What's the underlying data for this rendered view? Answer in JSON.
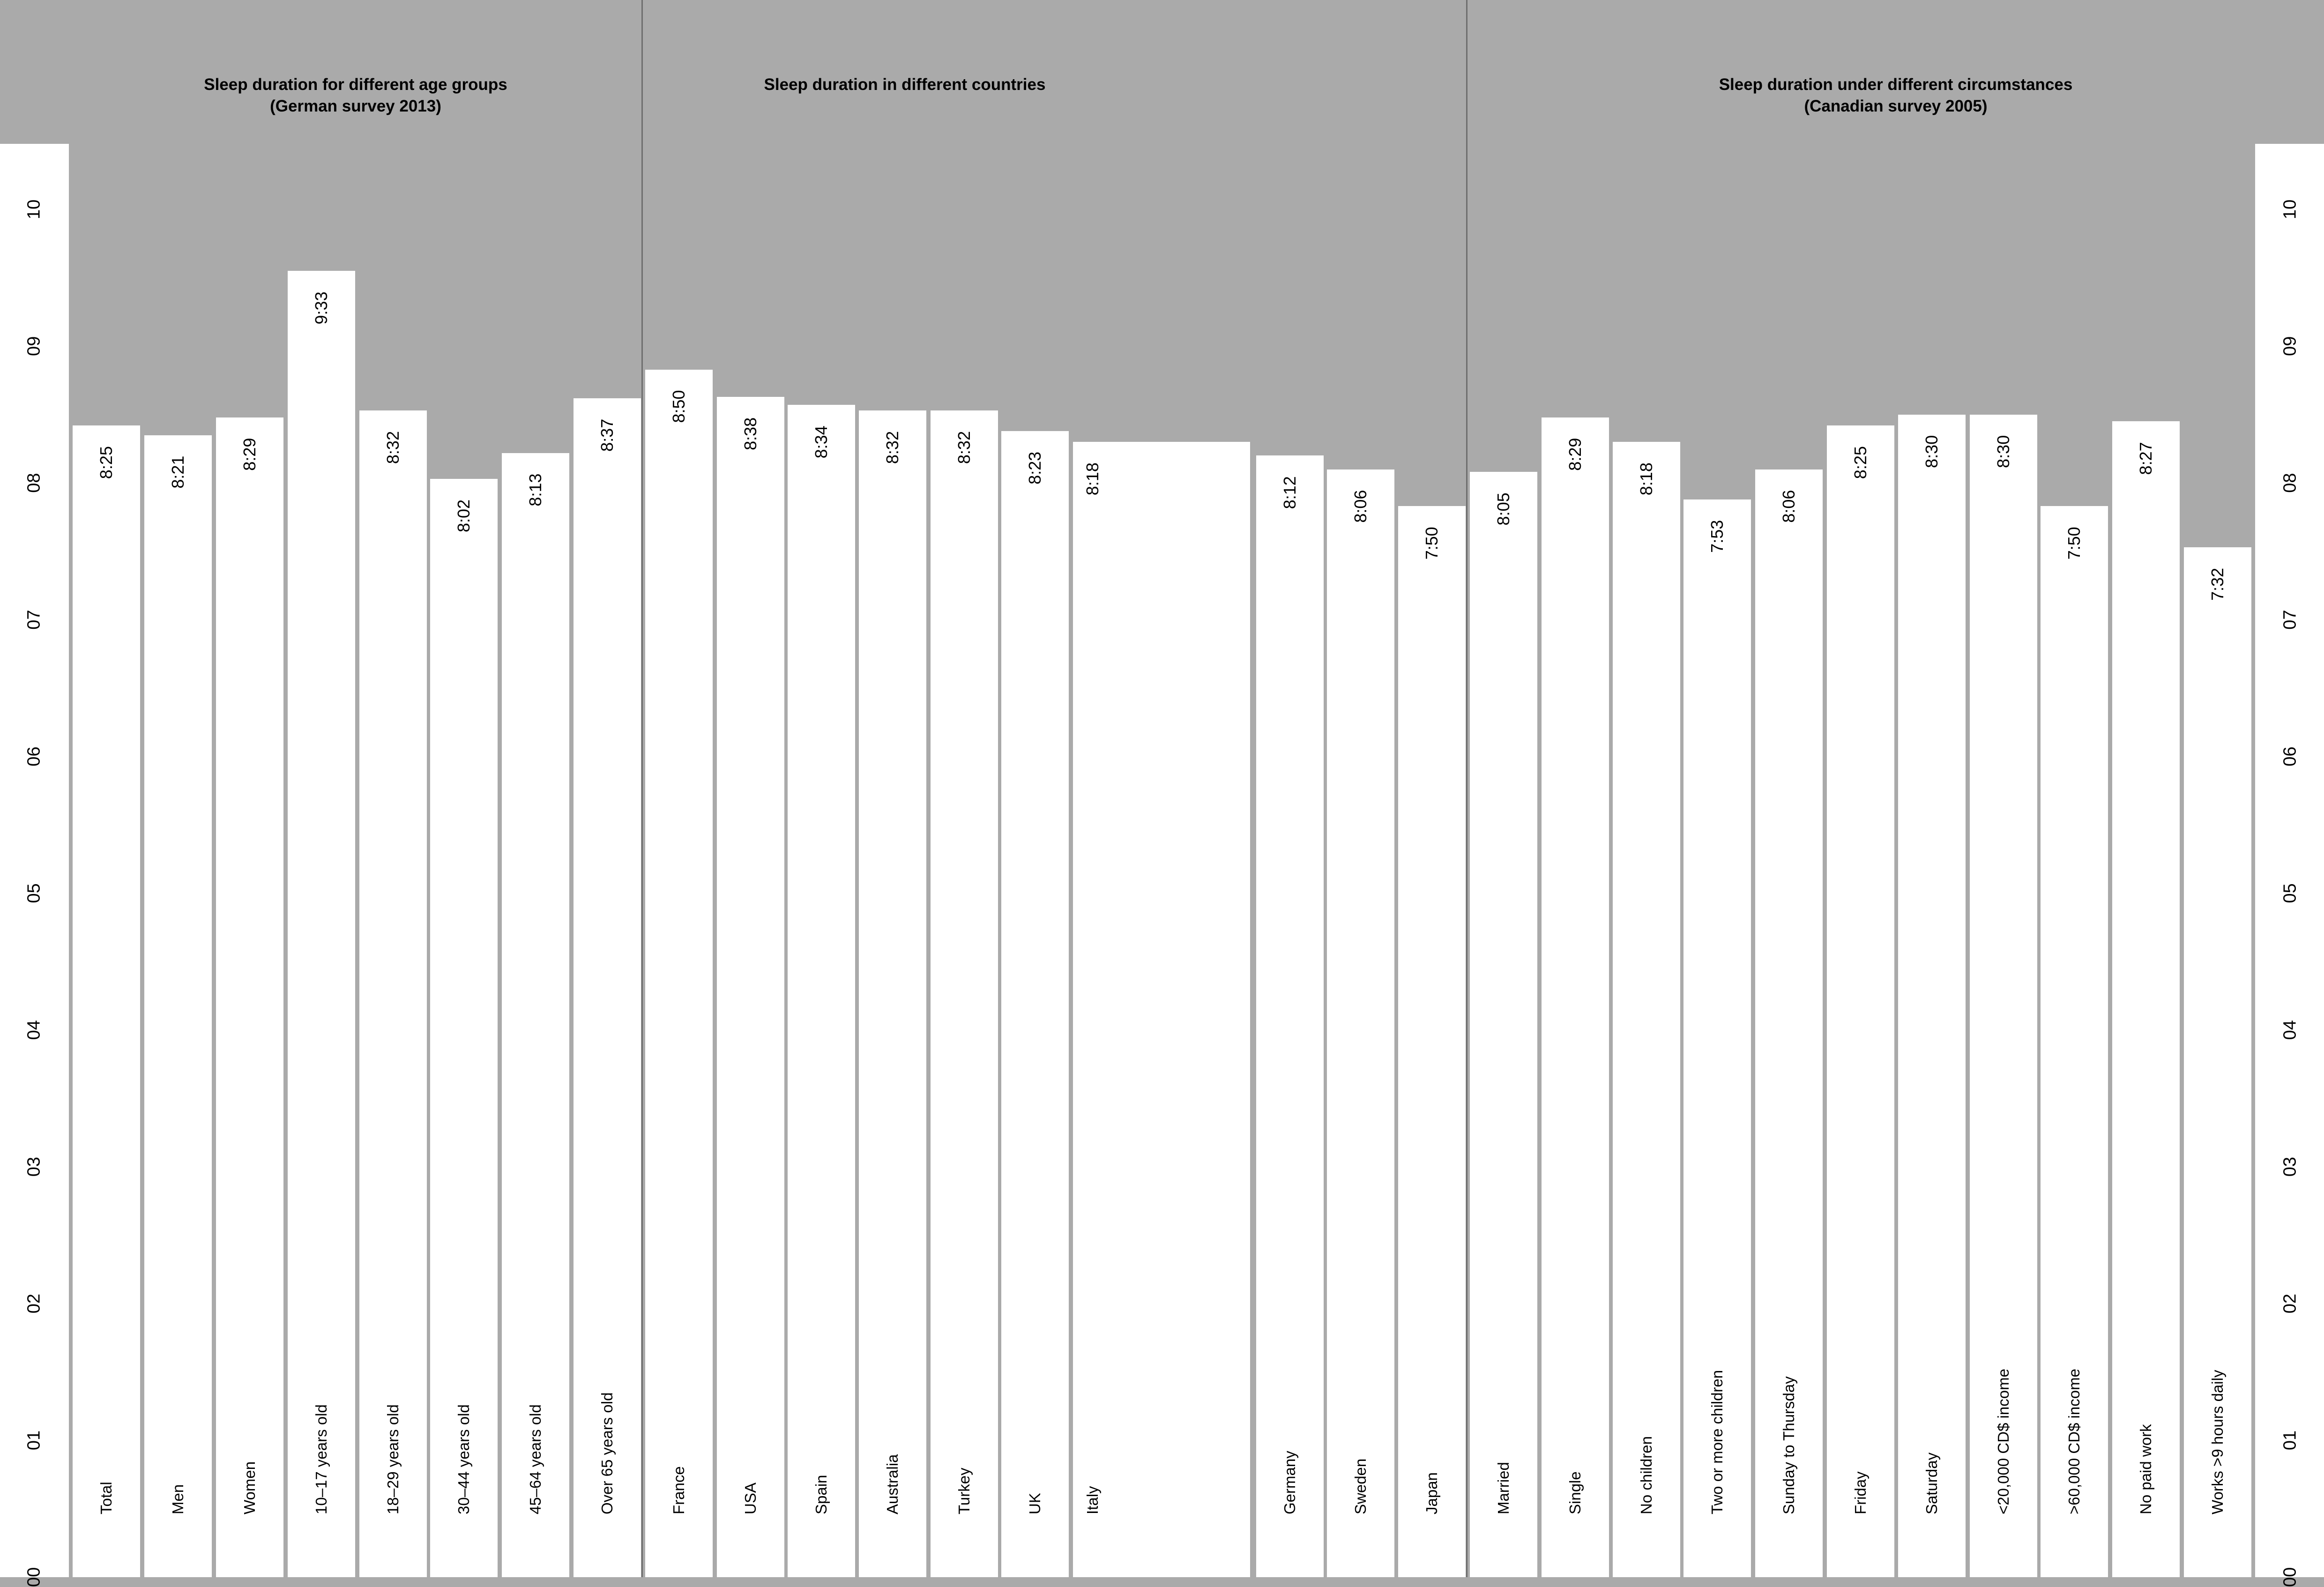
{
  "chart_data": {
    "type": "bar",
    "ylim": [
      0,
      10
    ],
    "yticks": [
      "00",
      "01",
      "02",
      "03",
      "04",
      "05",
      "06",
      "07",
      "08",
      "09",
      "10"
    ],
    "colors": {
      "background": "#aaaaaa",
      "bar": "#ffffff",
      "text": "#000000",
      "divider": "#6e6e6e"
    },
    "panels": [
      {
        "title": "Sleep duration for different age groups\n(German survey 2013)",
        "bars": [
          {
            "category": "Total",
            "label": "8:25",
            "value": 8.42
          },
          {
            "category": "Men",
            "label": "8:21",
            "value": 8.35
          },
          {
            "category": "Women",
            "label": "8:29",
            "value": 8.48
          },
          {
            "category": "10–17 years old",
            "label": "9:33",
            "value": 9.55
          },
          {
            "category": "18–29 years old",
            "label": "8:32",
            "value": 8.53
          },
          {
            "category": "30–44 years old",
            "label": "8:02",
            "value": 8.03
          },
          {
            "category": "45–64 years old",
            "label": "8:13",
            "value": 8.22
          },
          {
            "category": "Over 65 years old",
            "label": "8:37",
            "value": 8.62
          }
        ]
      },
      {
        "title": "Sleep duration in different countries",
        "bars": [
          {
            "category": "France",
            "label": "8:50",
            "value": 8.83
          },
          {
            "category": "USA",
            "label": "8:38",
            "value": 8.63
          },
          {
            "category": "Spain",
            "label": "8:34",
            "value": 8.57
          },
          {
            "category": "Australia",
            "label": "8:32",
            "value": 8.53
          },
          {
            "category": "Turkey",
            "label": "8:32",
            "value": 8.53
          },
          {
            "category": "UK",
            "label": "8:23",
            "value": 8.38
          },
          {
            "category": "Italy",
            "label": "8:18",
            "value": 8.3
          },
          {
            "category": "Germany",
            "label": "8:12",
            "value": 8.2
          },
          {
            "category": "Sweden",
            "label": "8:06",
            "value": 8.1
          },
          {
            "category": "Japan",
            "label": "7:50",
            "value": 7.83
          }
        ]
      },
      {
        "title": "Sleep duration under different circumstances\n(Canadian survey 2005)",
        "bars": [
          {
            "category": "Married",
            "label": "8:05",
            "value": 8.08
          },
          {
            "category": "Single",
            "label": "8:29",
            "value": 8.48
          },
          {
            "category": "No children",
            "label": "8:18",
            "value": 8.3
          },
          {
            "category": "Two or more children",
            "label": "7:53",
            "value": 7.88
          },
          {
            "category": "Sunday to Thursday",
            "label": "8:06",
            "value": 8.1
          },
          {
            "category": "Friday",
            "label": "8:25",
            "value": 8.42
          },
          {
            "category": "Saturday",
            "label": "8:30",
            "value": 8.5
          },
          {
            "category": "<20,000 CD$ income",
            "label": "8:30",
            "value": 8.5
          },
          {
            "category": ">60,000 CD$ income",
            "label": "7:50",
            "value": 7.83
          },
          {
            "category": "No paid work",
            "label": "8:27",
            "value": 8.45
          },
          {
            "category": "Works >9 hours daily",
            "label": "7:32",
            "value": 7.53
          }
        ]
      }
    ]
  }
}
